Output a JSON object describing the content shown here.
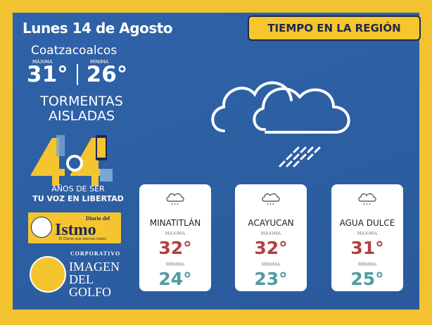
{
  "header": {
    "title": "TIEMPO EN LA REGIÓN",
    "date": "Lunes 14 de Agosto"
  },
  "main_city": {
    "name": "Coatzacoalcos",
    "max_label": "MÁXIMA",
    "min_label": "MÍNIMA",
    "max": "31°",
    "min": "26°",
    "condition_line1": "TORMENTAS",
    "condition_line2": "AISLADAS"
  },
  "anniversary": {
    "years_text": "AÑOS DE SER",
    "slogan": "TU VOZ EN LIBERTAD"
  },
  "logos": {
    "istmo_small": "Diario del",
    "istmo_title": "Istmo",
    "istmo_tag": "El Diario que leemos todos",
    "corp_label": "CORPORATIVO",
    "corp_name_1": "IMAGEN",
    "corp_name_2": "DEL",
    "corp_name_3": "GOLFO"
  },
  "cities": [
    {
      "name": "MINATITLÁN",
      "max_label": "MÁXIMA",
      "max": "32°",
      "min_label": "MÍNIMA",
      "min": "24°"
    },
    {
      "name": "ACAYUCAN",
      "max_label": "MÁXIMA",
      "max": "32°",
      "min_label": "MÍNIMA",
      "min": "23°"
    },
    {
      "name": "AGUA DULCE",
      "max_label": "MÁXIMA",
      "max": "31°",
      "min_label": "MÍNIMA",
      "min": "25°"
    }
  ],
  "colors": {
    "background_blue": "#2d5fa3",
    "accent_yellow": "#f2c230",
    "max_temp_red": "#b34040",
    "min_temp_teal": "#4f9aa9"
  },
  "icons": {
    "main": "cloud-rain-icon",
    "card": "cloud-rain-icon"
  }
}
